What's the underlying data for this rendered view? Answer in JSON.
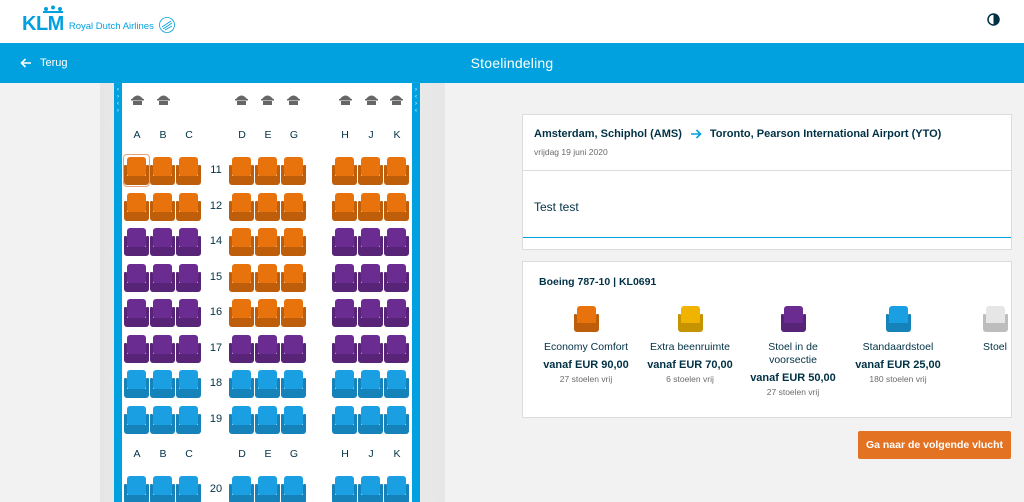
{
  "header": {
    "logo_text": "KLM",
    "logo_subtitle": "Royal Dutch Airlines"
  },
  "nav": {
    "back_label": "Terug",
    "title": "Stoelindeling"
  },
  "seatmap": {
    "columns_top": [
      "A",
      "B",
      "C",
      "D",
      "E",
      "G",
      "H",
      "J",
      "K"
    ],
    "columns_bottom": [
      "A",
      "B",
      "C",
      "D",
      "E",
      "G",
      "H",
      "J",
      "K"
    ],
    "rows": [
      {
        "number": "11",
        "seats": [
          "comfort",
          "comfort",
          "comfort",
          "comfort",
          "comfort",
          "comfort",
          "comfort",
          "comfort",
          "comfort"
        ]
      },
      {
        "number": "12",
        "seats": [
          "comfort",
          "comfort",
          "comfort",
          "comfort",
          "comfort",
          "comfort",
          "comfort",
          "comfort",
          "comfort"
        ]
      },
      {
        "number": "14",
        "seats": [
          "front",
          "front",
          "front",
          "comfort",
          "comfort",
          "comfort",
          "front",
          "front",
          "front"
        ]
      },
      {
        "number": "15",
        "seats": [
          "front",
          "front",
          "front",
          "comfort",
          "comfort",
          "comfort",
          "front",
          "front",
          "front"
        ]
      },
      {
        "number": "16",
        "seats": [
          "front",
          "front",
          "front",
          "comfort",
          "comfort",
          "comfort",
          "front",
          "front",
          "front"
        ]
      },
      {
        "number": "17",
        "seats": [
          "front",
          "front",
          "front",
          "front",
          "front",
          "front",
          "front",
          "front",
          "front"
        ]
      },
      {
        "number": "18",
        "seats": [
          "standard",
          "standard",
          "standard",
          "standard",
          "standard",
          "standard",
          "standard",
          "standard",
          "standard"
        ]
      },
      {
        "number": "19",
        "seats": [
          "standard",
          "standard",
          "standard",
          "standard",
          "standard",
          "standard",
          "standard",
          "standard",
          "standard"
        ]
      },
      {
        "number": "20",
        "seats": [
          "standard",
          "standard",
          "standard",
          "standard",
          "standard",
          "standard",
          "standard",
          "standard",
          "standard"
        ]
      }
    ],
    "selected_seat": "11A"
  },
  "flight": {
    "origin": "Amsterdam, Schiphol (AMS)",
    "destination": "Toronto, Pearson International Airport (YTO)",
    "date": "vrijdag 19 juni 2020"
  },
  "passenger": {
    "name": "Test test"
  },
  "legend": {
    "aircraft": "Boeing 787-10 | KL0691",
    "items": [
      {
        "type": "comfort",
        "name": "Economy Comfort",
        "price": "vanaf EUR 90,00",
        "count": "27 stoelen vrij"
      },
      {
        "type": "legroom",
        "name": "Extra beenruimte",
        "price": "vanaf EUR 70,00",
        "count": "6 stoelen vrij"
      },
      {
        "type": "front",
        "name": "Stoel in de voorsectie",
        "price": "vanaf EUR 50,00",
        "count": "27 stoelen vrij"
      },
      {
        "type": "standard",
        "name": "Standaardstoel",
        "price": "vanaf EUR 25,00",
        "count": "180 stoelen vrij"
      },
      {
        "type": "free",
        "name": "Stoel",
        "price": "",
        "count": ""
      }
    ]
  },
  "actions": {
    "next_flight_label": "Ga naar de volgende vlucht"
  },
  "colors": {
    "brand": "#00a1de",
    "comfort": "#e8720c",
    "legroom": "#f0b400",
    "front": "#6b2c91",
    "standard": "#1aa0e2",
    "free": "#e6e6e6",
    "cta": "#e37222"
  }
}
